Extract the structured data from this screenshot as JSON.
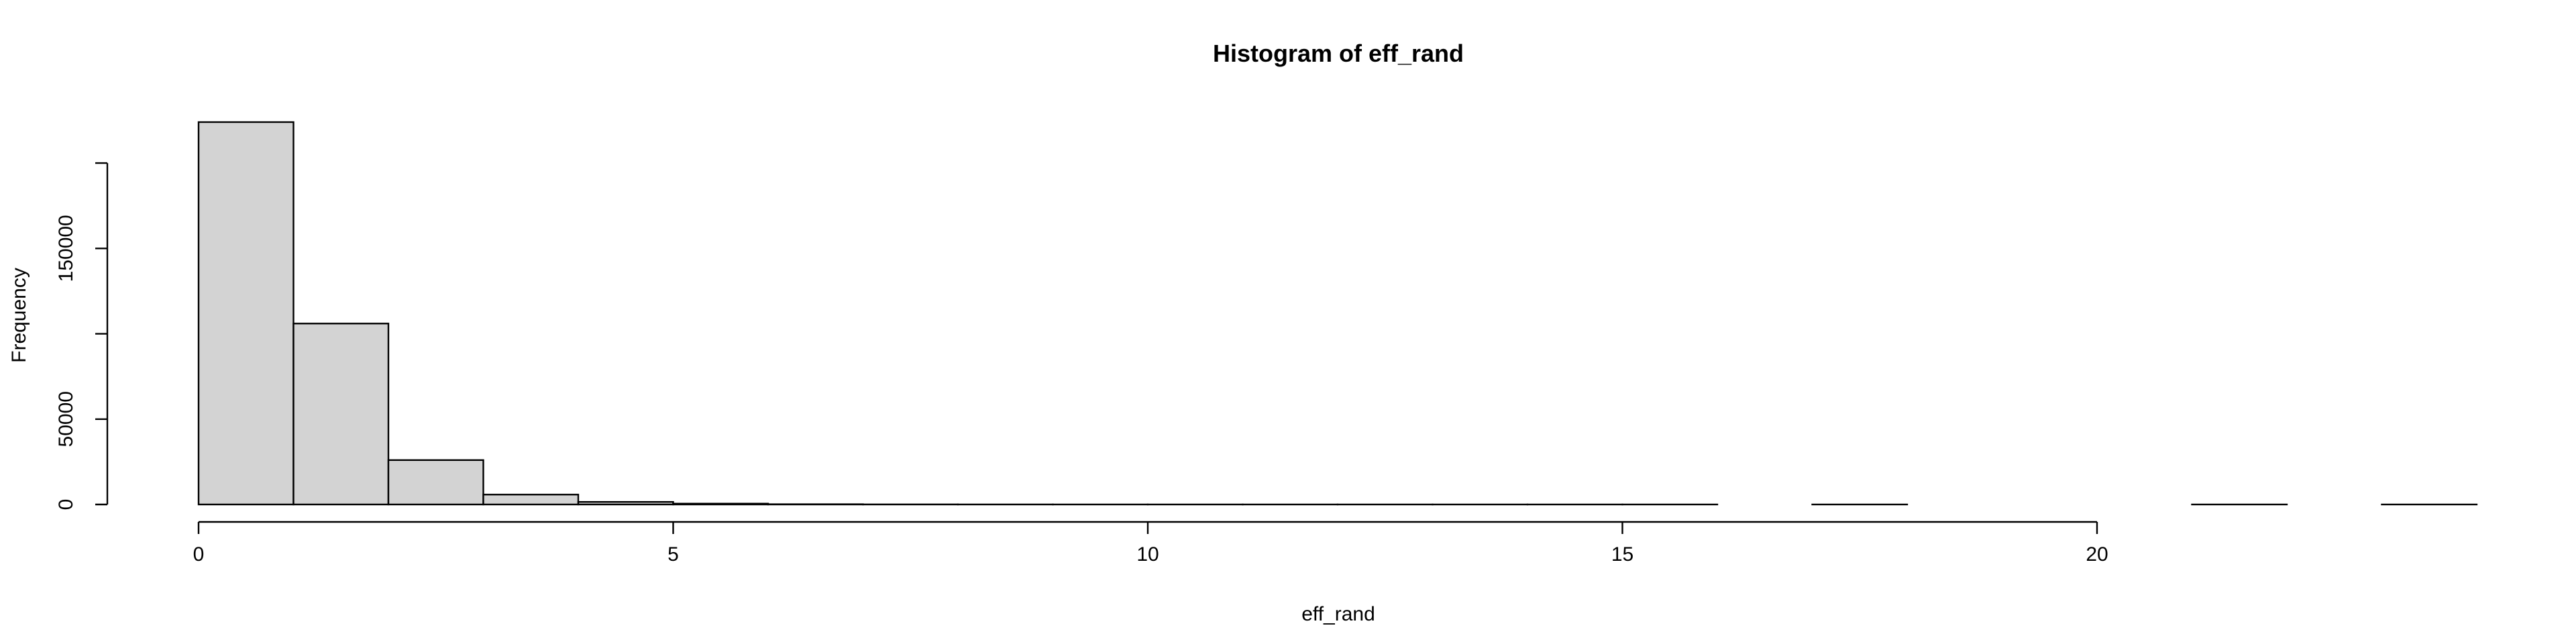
{
  "chart_data": {
    "type": "bar",
    "title": "Histogram of eff_rand",
    "xlabel": "eff_rand",
    "ylabel": "Frequency",
    "bins": [
      {
        "x0": 0,
        "x1": 1,
        "count": 224000
      },
      {
        "x0": 1,
        "x1": 2,
        "count": 106000
      },
      {
        "x0": 2,
        "x1": 3,
        "count": 26000
      },
      {
        "x0": 3,
        "x1": 4,
        "count": 5800
      },
      {
        "x0": 4,
        "x1": 5,
        "count": 1500
      },
      {
        "x0": 5,
        "x1": 6,
        "count": 500
      },
      {
        "x0": 6,
        "x1": 7,
        "count": 150
      },
      {
        "x0": 7,
        "x1": 8,
        "count": 50
      },
      {
        "x0": 8,
        "x1": 9,
        "count": 20
      },
      {
        "x0": 9,
        "x1": 10,
        "count": 10
      },
      {
        "x0": 10,
        "x1": 11,
        "count": 5
      },
      {
        "x0": 11,
        "x1": 12,
        "count": 3
      },
      {
        "x0": 12,
        "x1": 13,
        "count": 2
      },
      {
        "x0": 13,
        "x1": 14,
        "count": 1
      },
      {
        "x0": 14,
        "x1": 15,
        "count": 1
      },
      {
        "x0": 15,
        "x1": 16,
        "count": 1
      },
      {
        "x0": 16,
        "x1": 17,
        "count": 0
      },
      {
        "x0": 17,
        "x1": 18,
        "count": 1
      },
      {
        "x0": 18,
        "x1": 19,
        "count": 0
      },
      {
        "x0": 19,
        "x1": 20,
        "count": 0
      },
      {
        "x0": 20,
        "x1": 21,
        "count": 0
      },
      {
        "x0": 21,
        "x1": 22,
        "count": 1
      },
      {
        "x0": 22,
        "x1": 23,
        "count": 0
      },
      {
        "x0": 23,
        "x1": 24,
        "count": 1
      }
    ],
    "x_ticks": [
      0,
      5,
      10,
      15,
      20
    ],
    "x_tick_labels": [
      "0",
      "5",
      "10",
      "15",
      "20"
    ],
    "y_ticks": [
      0,
      50000,
      100000,
      150000,
      200000
    ],
    "y_tick_labels": [
      "0",
      "50000",
      "",
      "150000",
      ""
    ],
    "xlim": [
      0,
      24
    ],
    "ylim": [
      0,
      224000
    ],
    "bar_fill": "#d3d3d3",
    "bar_stroke": "#000000",
    "grid": false,
    "legend": false
  }
}
